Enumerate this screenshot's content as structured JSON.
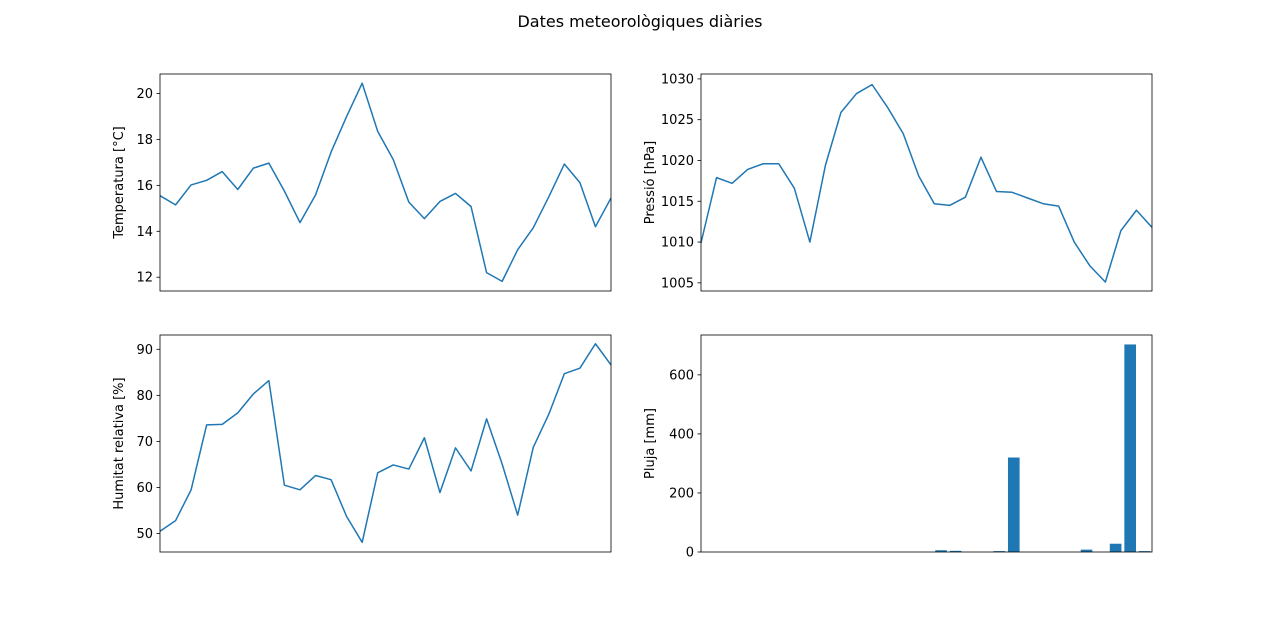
{
  "figure": {
    "title": "Dates meteorològiques diàries"
  },
  "chart_data": [
    {
      "type": "line",
      "ylabel": "Temperatura [°C]",
      "xlabel": "",
      "ylim": [
        11.4,
        20.85
      ],
      "yticks": [
        12,
        14,
        16,
        18,
        20
      ],
      "grid": false,
      "color": "#1f77b4",
      "values": [
        15.55,
        15.15,
        16.02,
        16.22,
        16.6,
        15.82,
        16.75,
        16.97,
        15.75,
        14.38,
        15.58,
        17.45,
        19.0,
        20.45,
        18.35,
        17.12,
        15.27,
        14.55,
        15.3,
        15.65,
        15.08,
        12.2,
        11.82,
        13.2,
        14.15,
        15.5,
        16.93,
        16.12,
        14.2,
        15.45
      ]
    },
    {
      "type": "line",
      "ylabel": "Pressió [hPa]",
      "xlabel": "",
      "ylim": [
        1004.0,
        1030.6
      ],
      "yticks": [
        1005,
        1010,
        1015,
        1020,
        1025,
        1030
      ],
      "grid": false,
      "color": "#1f77b4",
      "values": [
        1009.9,
        1017.9,
        1017.2,
        1018.9,
        1019.6,
        1019.6,
        1016.6,
        1010.0,
        1019.4,
        1025.9,
        1028.2,
        1029.3,
        1026.5,
        1023.3,
        1018.1,
        1014.7,
        1014.5,
        1015.5,
        1020.4,
        1016.2,
        1016.1,
        1015.4,
        1014.7,
        1014.4,
        1010.0,
        1007.1,
        1005.1,
        1011.4,
        1013.9,
        1011.8
      ]
    },
    {
      "type": "line",
      "ylabel": "Humitat relativa [%]",
      "xlabel": "",
      "ylim": [
        46.0,
        93.1
      ],
      "yticks": [
        50,
        60,
        70,
        80,
        90
      ],
      "grid": false,
      "color": "#1f77b4",
      "values": [
        50.5,
        52.8,
        59.5,
        73.6,
        73.7,
        76.2,
        80.3,
        83.2,
        60.5,
        59.5,
        62.6,
        61.7,
        53.7,
        48.1,
        63.2,
        64.9,
        64.0,
        70.8,
        58.9,
        68.6,
        63.6,
        74.9,
        65.1,
        54.0,
        68.7,
        75.9,
        84.7,
        85.9,
        91.2,
        86.6
      ]
    },
    {
      "type": "bar",
      "ylabel": "Pluja [mm]",
      "xlabel": "",
      "ylim": [
        0,
        735
      ],
      "yticks": [
        0,
        200,
        400,
        600
      ],
      "grid": false,
      "color": "#1f77b4",
      "values": [
        0,
        0,
        0,
        0,
        0,
        0,
        0,
        0,
        0,
        0,
        0,
        0,
        0,
        0,
        0,
        0,
        6,
        4,
        0,
        0,
        3,
        320,
        0,
        0,
        0,
        0,
        8,
        0,
        28,
        703,
        3
      ]
    }
  ]
}
